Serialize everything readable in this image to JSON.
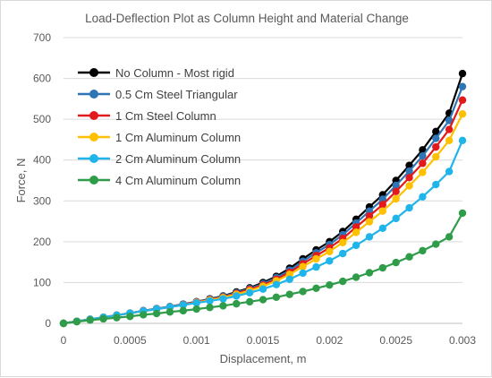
{
  "chart_data": {
    "type": "line",
    "title": "Load-Deflection Plot as Column Height and Material Change",
    "xlabel": "Displacement, m",
    "ylabel": "Force, N",
    "xlim": [
      0,
      0.003
    ],
    "ylim": [
      0,
      700
    ],
    "xticks": [
      0,
      0.0005,
      0.001,
      0.0015,
      0.002,
      0.0025,
      0.003
    ],
    "xtick_labels": [
      "0",
      "0.0005",
      "0.001",
      "0.0015",
      "0.002",
      "0.0025",
      "0.003"
    ],
    "yticks": [
      0,
      100,
      200,
      300,
      400,
      500,
      600,
      700
    ],
    "ytick_labels": [
      "0",
      "100",
      "200",
      "300",
      "400",
      "500",
      "600",
      "700"
    ],
    "grid": "horizontal",
    "legend": "top-left",
    "x": [
      0,
      0.0001,
      0.0002,
      0.0003,
      0.0004,
      0.0005,
      0.0006,
      0.0007,
      0.0008,
      0.0009,
      0.001,
      0.0011,
      0.0012,
      0.0013,
      0.0014,
      0.0015,
      0.0016,
      0.0017,
      0.0018,
      0.0019,
      0.002,
      0.0021,
      0.0022,
      0.0023,
      0.0024,
      0.0025,
      0.0026,
      0.0027,
      0.0028,
      0.0029,
      0.003
    ],
    "series": [
      {
        "name": "No Column - Most rigid",
        "color": "#000000",
        "values": [
          0,
          5,
          10,
          15,
          20,
          25,
          31,
          36,
          41,
          47,
          53,
          60,
          67,
          77,
          87,
          100,
          115,
          135,
          158,
          180,
          200,
          225,
          255,
          285,
          315,
          350,
          387,
          425,
          470,
          515,
          612
        ]
      },
      {
        "name": "0.5 Cm Steel Triangular",
        "color": "#2e75b6",
        "values": [
          0,
          5,
          10,
          15,
          20,
          25,
          31,
          36,
          41,
          47,
          53,
          59,
          66,
          75,
          85,
          97,
          112,
          130,
          152,
          173,
          193,
          217,
          246,
          275,
          304,
          338,
          373,
          410,
          453,
          497,
          580
        ]
      },
      {
        "name": "1 Cm Steel Column",
        "color": "#e31a1c",
        "values": [
          0,
          5,
          10,
          15,
          20,
          25,
          30,
          35,
          40,
          46,
          52,
          58,
          64,
          73,
          83,
          94,
          108,
          125,
          146,
          166,
          185,
          208,
          236,
          263,
          291,
          323,
          357,
          392,
          432,
          475,
          547
        ]
      },
      {
        "name": "1 Cm Aluminum Column",
        "color": "#ffc000",
        "values": [
          0,
          5,
          10,
          15,
          20,
          25,
          30,
          35,
          40,
          45,
          51,
          57,
          63,
          71,
          80,
          91,
          104,
          120,
          139,
          158,
          176,
          198,
          223,
          249,
          275,
          305,
          337,
          370,
          408,
          448,
          513
        ]
      },
      {
        "name": "2 Cm Aluminum Column",
        "color": "#1fb5ea",
        "values": [
          0,
          5,
          10,
          15,
          20,
          25,
          30,
          35,
          40,
          45,
          50,
          55,
          60,
          67,
          75,
          84,
          95,
          108,
          123,
          138,
          153,
          171,
          191,
          212,
          233,
          257,
          283,
          310,
          340,
          372,
          448
        ]
      },
      {
        "name": "4 Cm Aluminum Column",
        "color": "#2e9c48",
        "values": [
          0,
          4,
          8,
          11,
          14,
          17,
          21,
          24,
          28,
          31,
          35,
          39,
          43,
          48,
          53,
          58,
          64,
          71,
          78,
          86,
          94,
          103,
          113,
          124,
          136,
          149,
          163,
          178,
          194,
          212,
          270
        ]
      }
    ]
  }
}
